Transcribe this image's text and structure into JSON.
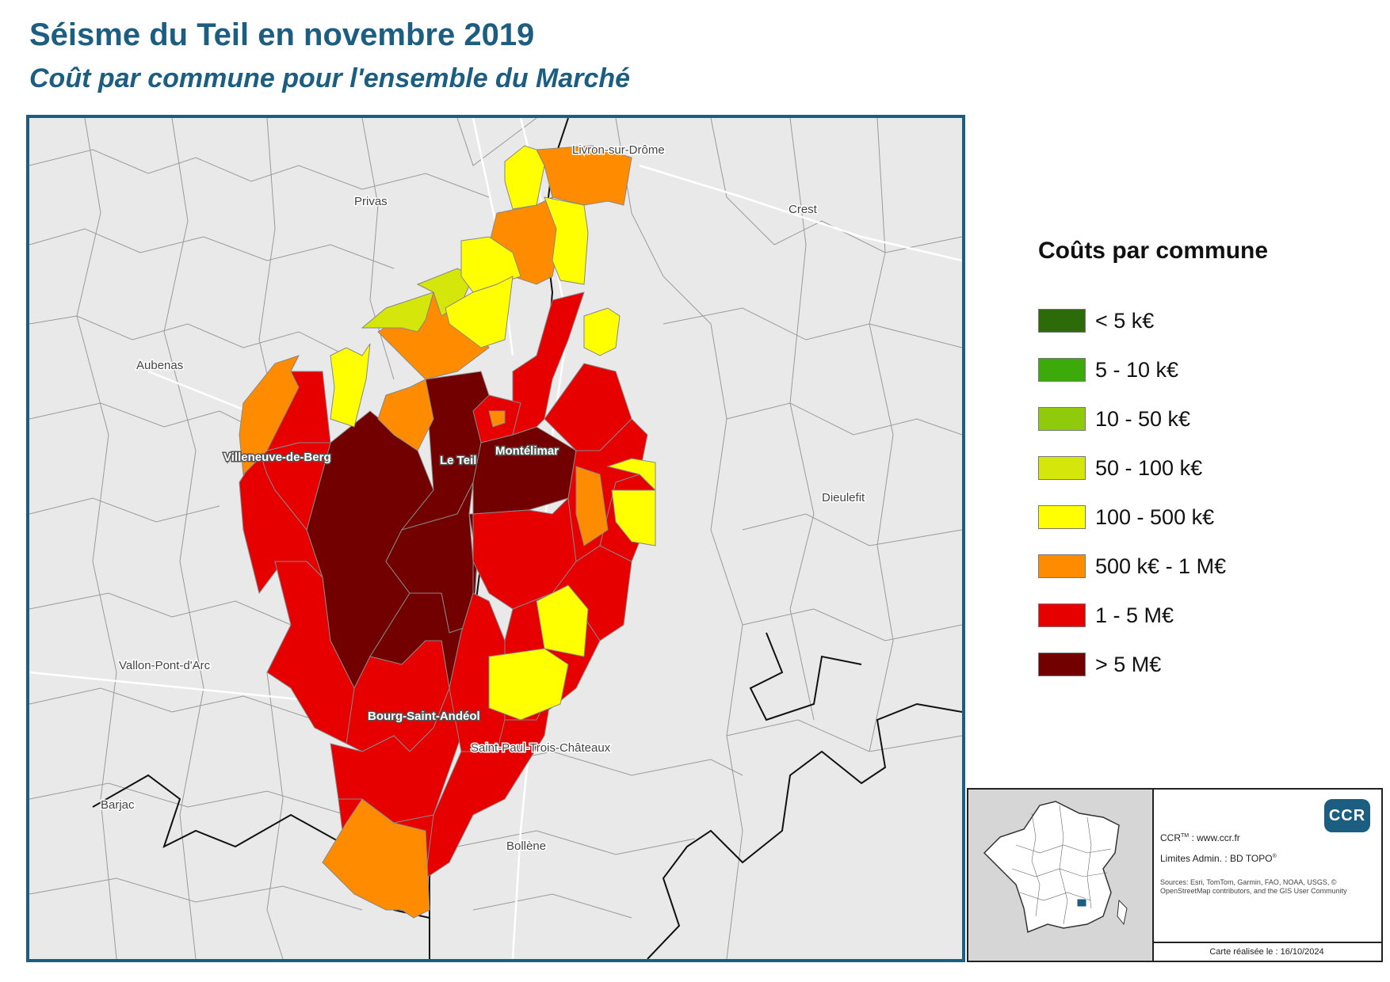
{
  "title": "Séisme du Teil en novembre 2019",
  "subtitle": "Coût par commune pour l'ensemble du Marché",
  "legend": {
    "title": "Coûts par commune",
    "items": [
      {
        "label": "< 5 k€",
        "color": "#2d6a0a"
      },
      {
        "label": "5 - 10 k€",
        "color": "#3caa0a"
      },
      {
        "label": "10 - 50 k€",
        "color": "#8fcb0a"
      },
      {
        "label": "50 - 100 k€",
        "color": "#d4e60a"
      },
      {
        "label": "100 - 500 k€",
        "color": "#ffff00"
      },
      {
        "label": "500 k€ - 1 M€",
        "color": "#ff8c00"
      },
      {
        "label": "1 - 5 M€",
        "color": "#e60000"
      },
      {
        "label": "> 5 M€",
        "color": "#730000"
      }
    ]
  },
  "map": {
    "cities": [
      {
        "name": "Livron-sur-Drôme",
        "major": false
      },
      {
        "name": "Privas",
        "major": false
      },
      {
        "name": "Crest",
        "major": false
      },
      {
        "name": "Aubenas",
        "major": false
      },
      {
        "name": "Villeneuve-de-Berg",
        "major": true
      },
      {
        "name": "Le Teil",
        "major": true
      },
      {
        "name": "Montélimar",
        "major": true
      },
      {
        "name": "Dieulefit",
        "major": false
      },
      {
        "name": "Vallon-Pont-d'Arc",
        "major": false
      },
      {
        "name": "Bourg-Saint-Andéol",
        "major": true
      },
      {
        "name": "Saint-Paul-Trois-Châteaux",
        "major": false
      },
      {
        "name": "Barjac",
        "major": false
      },
      {
        "name": "Bollène",
        "major": false
      }
    ]
  },
  "info": {
    "logo_text": "CCR",
    "website_prefix": "CCR",
    "website_tm": "TM",
    "website_rest": " : www.ccr.fr",
    "limits_text": "Limites Admin. : BD TOPO",
    "limits_sup": "®",
    "sources": "Sources: Esri, TomTom, Garmin, FAO, NOAA, USGS, © OpenStreetMap contributors, and the GIS User Community",
    "date": "Carte réalisée le : 16/10/2024"
  }
}
